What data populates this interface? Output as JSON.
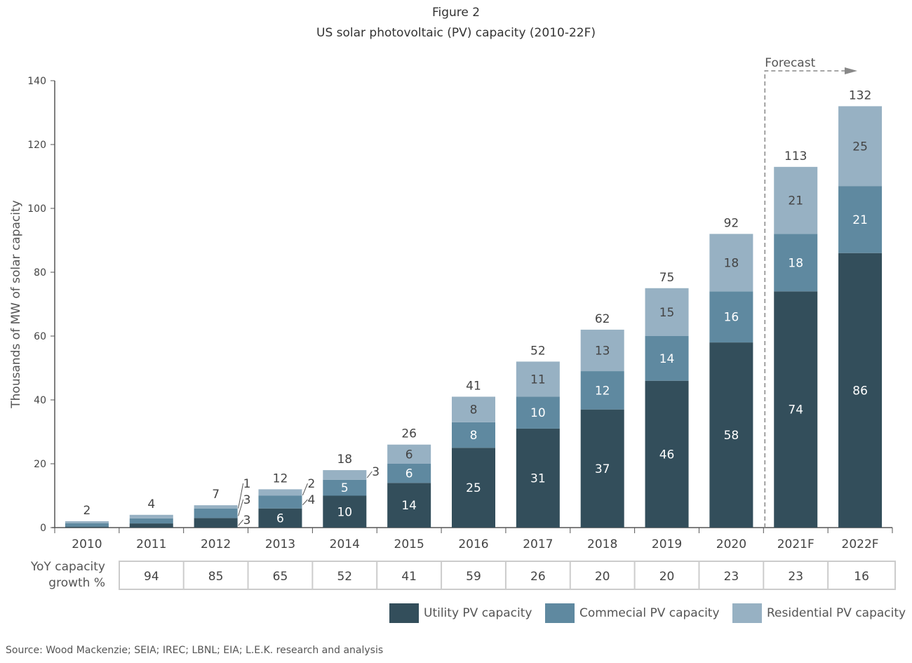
{
  "figure_label": "Figure 2",
  "title": "US solar photovoltaic (PV) capacity (2010-22F)",
  "source": "Source: Wood Mackenzie; SEIA; IREC; LBNL; EIA; L.E.K. research and analysis",
  "chart_data": {
    "type": "bar",
    "stacked": true,
    "categories": [
      "2010",
      "2011",
      "2012",
      "2013",
      "2014",
      "2015",
      "2016",
      "2017",
      "2018",
      "2019",
      "2020",
      "2021F",
      "2022F"
    ],
    "ylabel": "Thousands of MW of solar capacity",
    "ylim": [
      0,
      140
    ],
    "yticks": [
      0,
      20,
      40,
      60,
      80,
      100,
      120,
      140
    ],
    "grid": false,
    "series": [
      {
        "name": "Utility PV capacity",
        "color": "#334e5b",
        "values": [
          0.3,
          1.3,
          3,
          6,
          10,
          14,
          25,
          31,
          37,
          46,
          58,
          74,
          86
        ]
      },
      {
        "name": "Commecial PV capacity",
        "color": "#5f89a0",
        "values": [
          1.1,
          1.6,
          3,
          4,
          5,
          6,
          8,
          10,
          12,
          14,
          16,
          18,
          21
        ]
      },
      {
        "name": "Residential PV capacity",
        "color": "#97b1c3",
        "values": [
          0.6,
          1.1,
          1,
          2,
          3,
          6,
          8,
          11,
          13,
          15,
          18,
          21,
          25
        ]
      }
    ],
    "totals": [
      2,
      4,
      7,
      12,
      18,
      26,
      41,
      52,
      62,
      75,
      92,
      113,
      132
    ],
    "forecast_label": "Forecast",
    "forecast_start": "2021F",
    "legend_position": "bottom-right",
    "yoy": {
      "label_line1": "YoY capacity",
      "label_line2": "growth %",
      "categories": [
        "2011",
        "2012",
        "2013",
        "2014",
        "2015",
        "2016",
        "2017",
        "2018",
        "2019",
        "2020",
        "2021F",
        "2022F"
      ],
      "values": [
        94,
        85,
        65,
        52,
        41,
        59,
        26,
        20,
        20,
        23,
        23,
        16
      ]
    }
  }
}
